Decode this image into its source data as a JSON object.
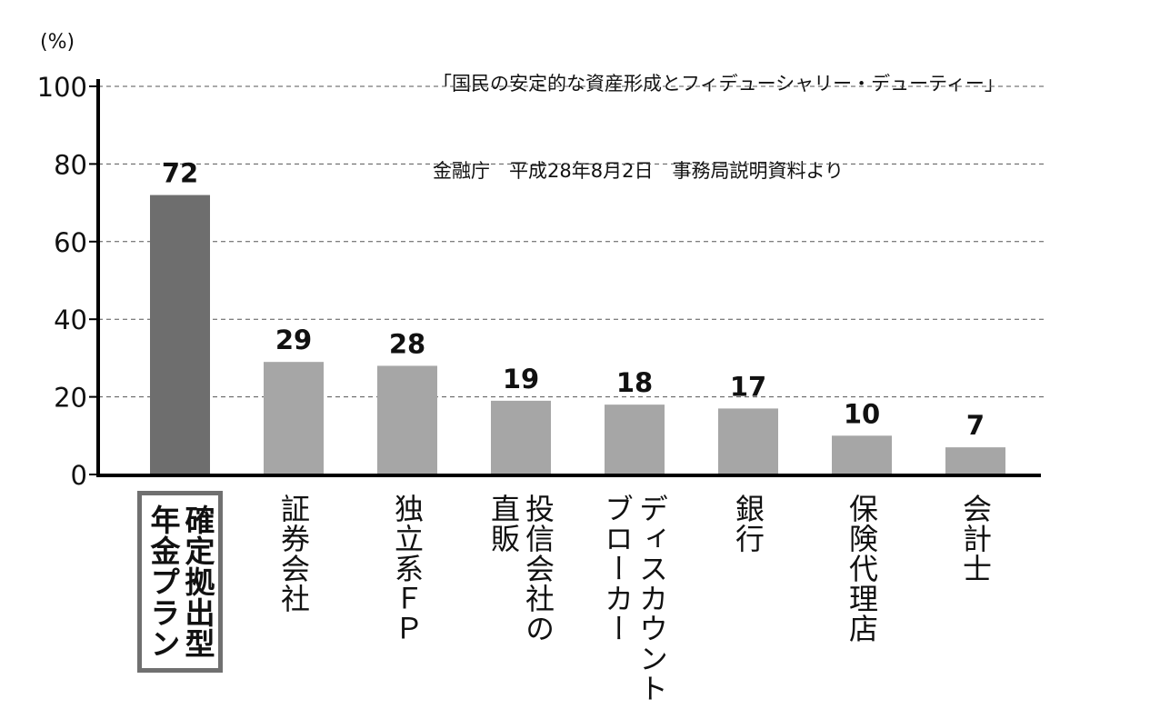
{
  "source": {
    "line1": "「国民の安定的な資産形成とフィデューシャリー・デューティー」",
    "line2": "金融庁　平成28年8月2日　事務局説明資料より"
  },
  "chart_data": {
    "type": "bar",
    "unit_label": "(%)",
    "ylim": [
      0,
      100
    ],
    "yticks": [
      0,
      20,
      40,
      60,
      80,
      100
    ],
    "grid": true,
    "categories": [
      [
        "確定拠出型",
        "年金プラン"
      ],
      [
        "証券会社"
      ],
      [
        "独立系ＦＰ"
      ],
      [
        "投信会社の",
        "直販"
      ],
      [
        "ディスカウント",
        "ブローカー"
      ],
      [
        "銀行"
      ],
      [
        "保険代理店"
      ],
      [
        "会計士"
      ]
    ],
    "values": [
      72,
      29,
      28,
      19,
      18,
      17,
      10,
      7
    ],
    "highlight_index": 0,
    "colors": {
      "highlight": "#6e6e6e",
      "bar": "#a6a6a6",
      "grid": "#555555",
      "axis": "#000000"
    }
  }
}
